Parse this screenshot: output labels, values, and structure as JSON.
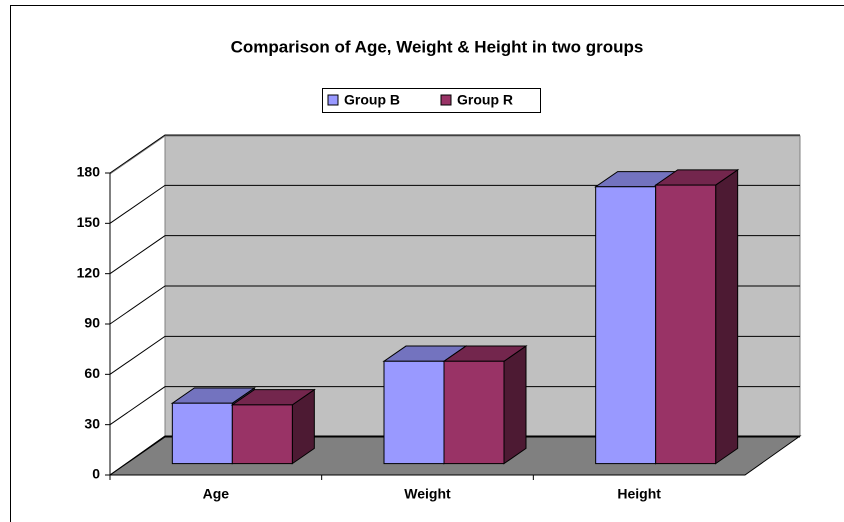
{
  "chart_data": {
    "type": "bar3d",
    "title": "Comparison of Age, Weight & Height in two groups",
    "categories": [
      "Age",
      "Weight",
      "Height"
    ],
    "series": [
      {
        "name": "Group B",
        "color": "#9999ff",
        "values": [
          36,
          61,
          165
        ]
      },
      {
        "name": "Group R",
        "color": "#993366",
        "values": [
          35,
          61,
          166
        ]
      }
    ],
    "ylim": [
      0,
      180
    ],
    "yticks": [
      0,
      30,
      60,
      90,
      120,
      150,
      180
    ],
    "grid": true,
    "legend": "top"
  }
}
